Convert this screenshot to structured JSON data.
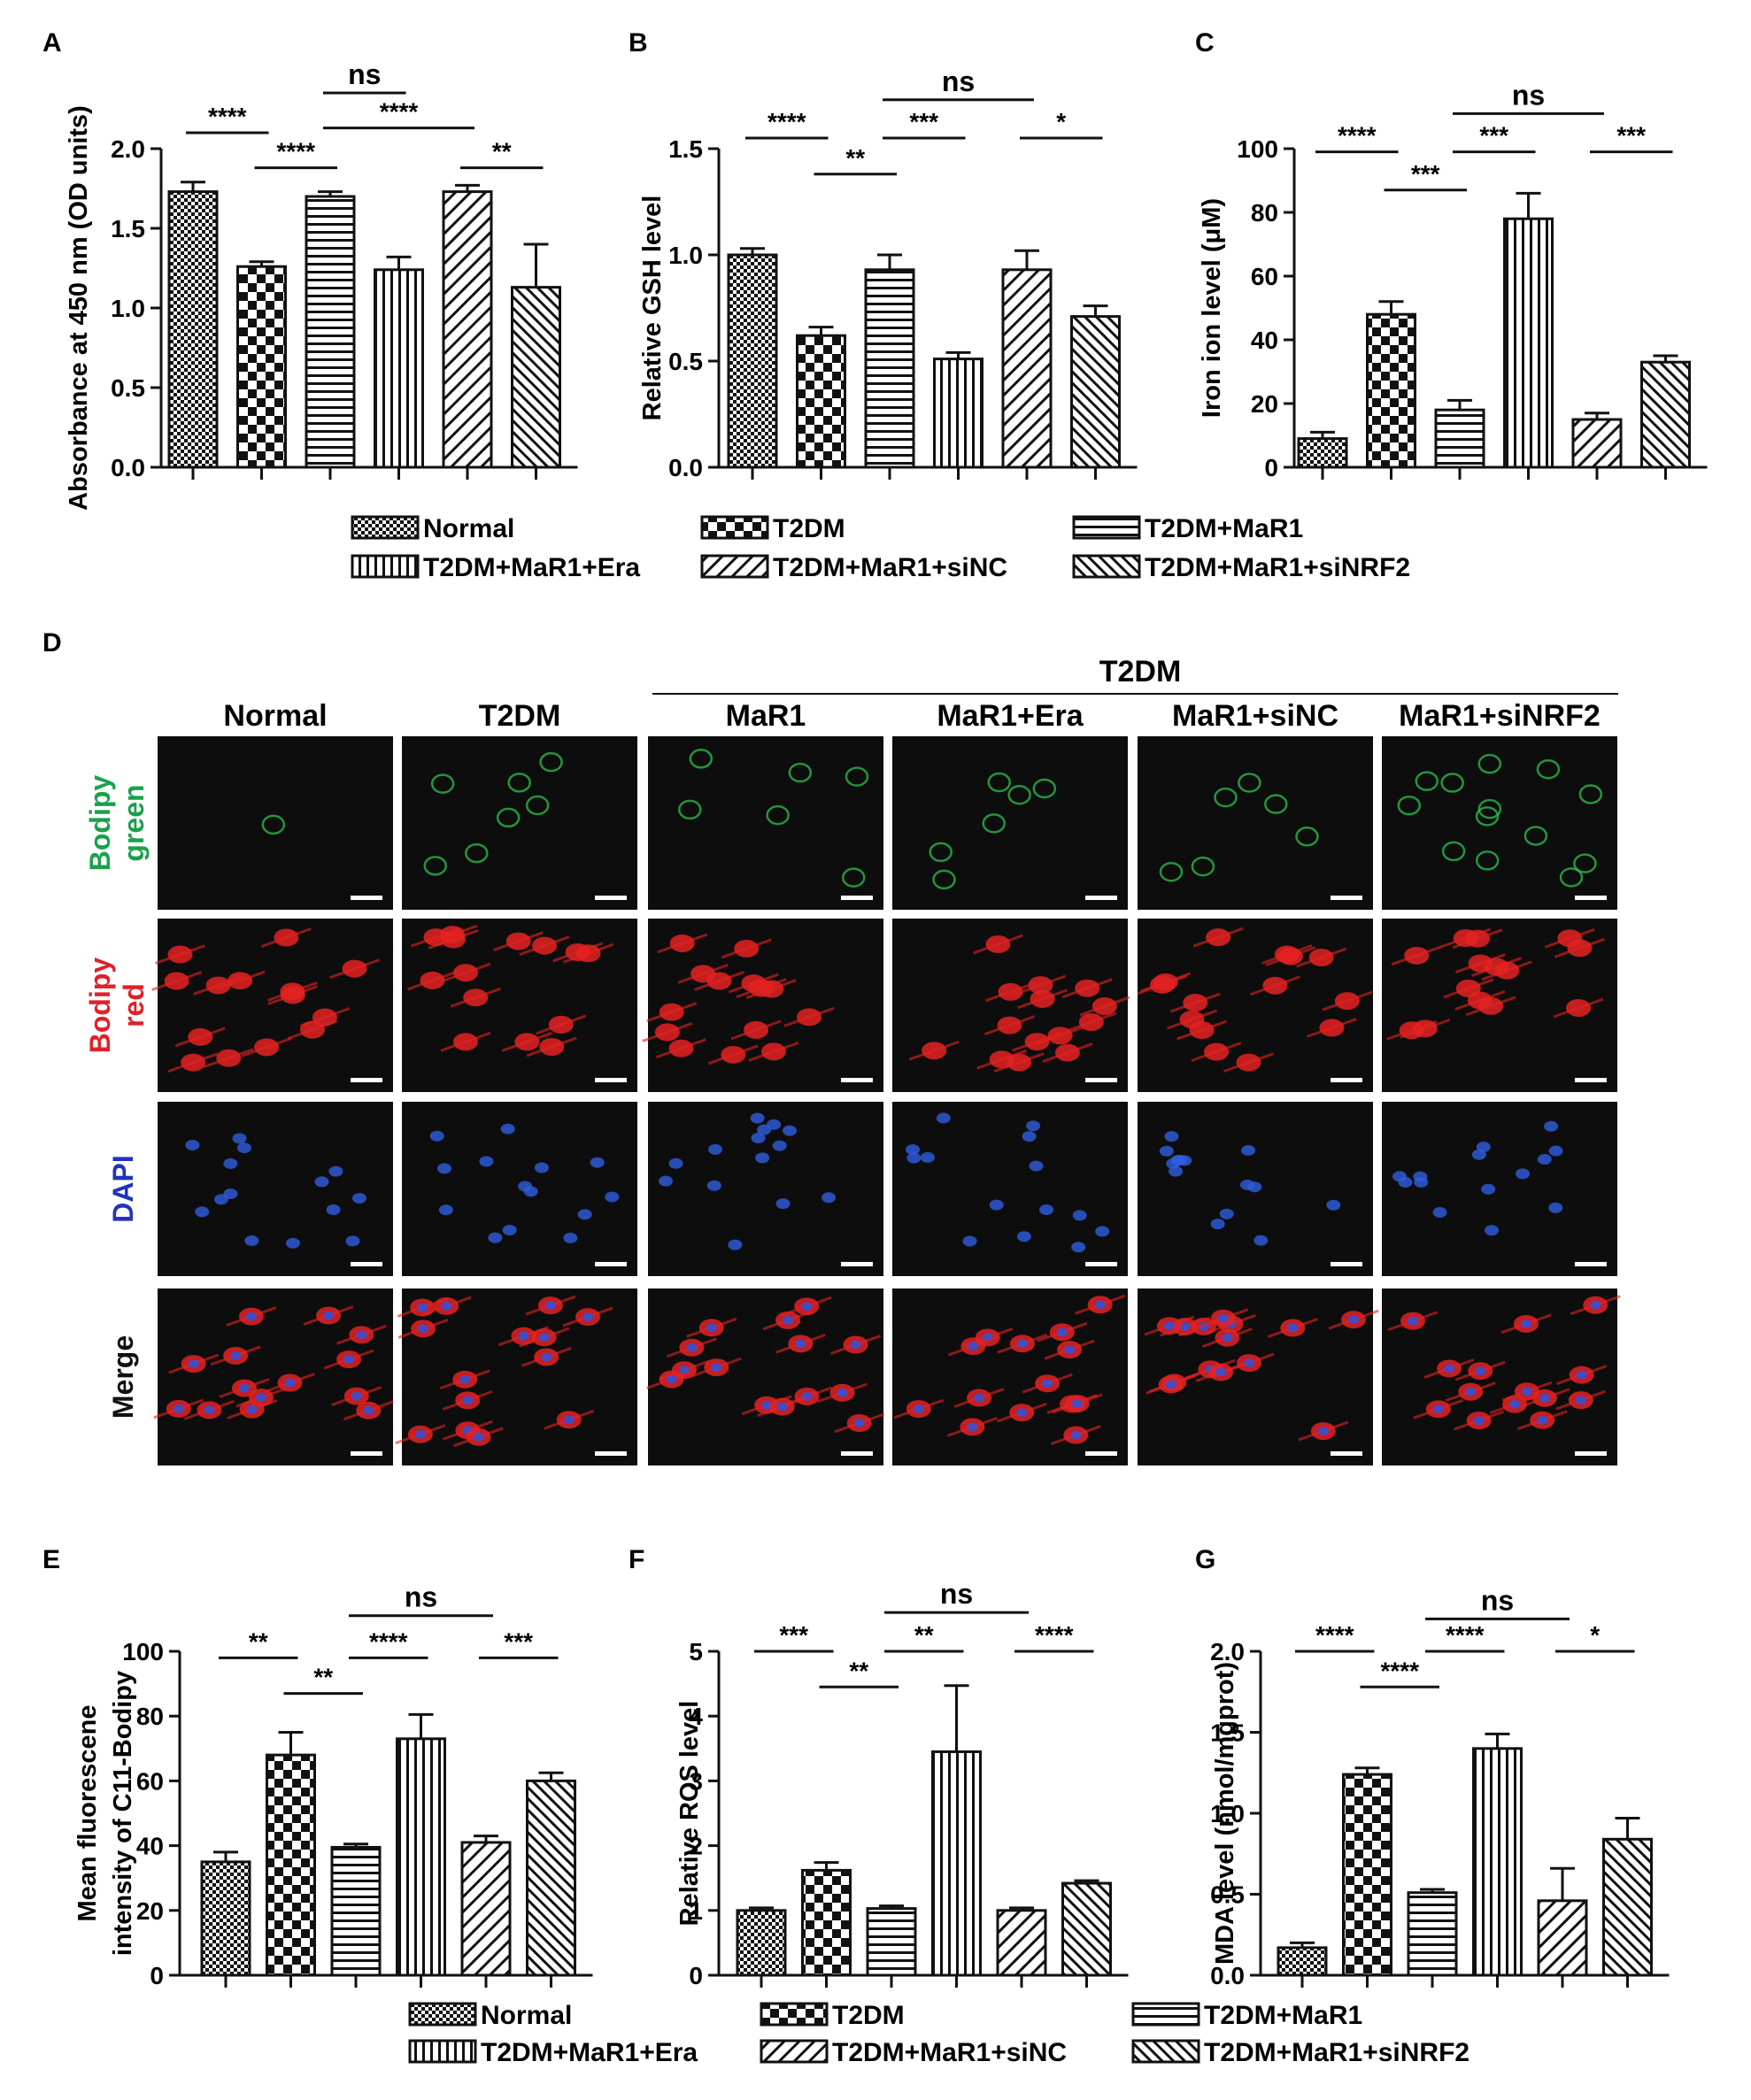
{
  "legend": {
    "groups": [
      "Normal",
      "T2DM",
      "T2DM+MaR1",
      "T2DM+MaR1+Era",
      "T2DM+MaR1+siNC",
      "T2DM+MaR1+siNRF2"
    ]
  },
  "microscopy": {
    "panel_letter": "D",
    "group_header": "T2DM",
    "columns": [
      "Normal",
      "T2DM",
      "MaR1",
      "MaR1+Era",
      "MaR1+siNC",
      "MaR1+siNRF2"
    ],
    "rows": [
      {
        "label": [
          "Bodipy",
          "green"
        ],
        "color": "#1aa14a",
        "cell_color": "#2ec24f"
      },
      {
        "label": [
          "Bodipy",
          "red"
        ],
        "color": "#e0202a",
        "cell_color": "#e52222"
      },
      {
        "label": [
          "DAPI"
        ],
        "color": "#2233bb",
        "cell_color": "#2f5ee0"
      },
      {
        "label": [
          "Merge"
        ],
        "color": "#111111",
        "cell_color": "#e52222"
      }
    ]
  },
  "chart_data": [
    {
      "panel": "A",
      "type": "bar",
      "ylabel": "Absorbance at 450 nm (OD units)",
      "ylim": [
        0,
        2.0
      ],
      "yticks": [
        "0.0",
        "0.5",
        "1.0",
        "1.5",
        "2.0"
      ],
      "categories": [
        "Normal",
        "T2DM",
        "T2DM+MaR1",
        "T2DM+MaR1+Era",
        "T2DM+MaR1+siNC",
        "T2DM+MaR1+siNRF2"
      ],
      "values": [
        1.73,
        1.26,
        1.7,
        1.24,
        1.73,
        1.13
      ],
      "errors": [
        0.06,
        0.03,
        0.03,
        0.08,
        0.04,
        0.27
      ],
      "significance": [
        {
          "from": 0,
          "to": 1,
          "label": "****",
          "level": 2.1
        },
        {
          "from": 1,
          "to": 2,
          "label": "****",
          "level": 1.88
        },
        {
          "from": 2,
          "to": 3,
          "label": "ns",
          "level": 2.35
        },
        {
          "from": 2,
          "to": 4,
          "label": "****",
          "level": 2.13
        },
        {
          "from": 4,
          "to": 5,
          "label": "**",
          "level": 1.88
        }
      ]
    },
    {
      "panel": "B",
      "type": "bar",
      "ylabel": "Relative GSH level",
      "ylim": [
        0,
        1.5
      ],
      "yticks": [
        "0.0",
        "0.5",
        "1.0",
        "1.5"
      ],
      "categories": [
        "Normal",
        "T2DM",
        "T2DM+MaR1",
        "T2DM+MaR1+Era",
        "T2DM+MaR1+siNC",
        "T2DM+MaR1+siNRF2"
      ],
      "values": [
        1.0,
        0.62,
        0.93,
        0.51,
        0.93,
        0.71
      ],
      "errors": [
        0.03,
        0.04,
        0.07,
        0.03,
        0.09,
        0.05
      ],
      "significance": [
        {
          "from": 0,
          "to": 1,
          "label": "****",
          "level": 1.55
        },
        {
          "from": 1,
          "to": 2,
          "label": "**",
          "level": 1.38
        },
        {
          "from": 2,
          "to": 4,
          "label": "ns",
          "level": 1.73
        },
        {
          "from": 2,
          "to": 3,
          "label": "***",
          "level": 1.55
        },
        {
          "from": 4,
          "to": 5,
          "label": "*",
          "level": 1.55
        }
      ]
    },
    {
      "panel": "C",
      "type": "bar",
      "ylabel": "Iron ion level (μM)",
      "ylim": [
        0,
        100
      ],
      "yticks": [
        "0",
        "20",
        "40",
        "60",
        "80",
        "100"
      ],
      "categories": [
        "Normal",
        "T2DM",
        "T2DM+MaR1",
        "T2DM+MaR1+Era",
        "T2DM+MaR1+siNC",
        "T2DM+MaR1+siNRF2"
      ],
      "values": [
        9,
        48,
        18,
        78,
        15,
        33
      ],
      "errors": [
        2,
        4,
        3,
        8,
        2,
        2
      ],
      "significance": [
        {
          "from": 0,
          "to": 1,
          "label": "****",
          "level": 99
        },
        {
          "from": 1,
          "to": 2,
          "label": "***",
          "level": 87
        },
        {
          "from": 2,
          "to": 4,
          "label": "ns",
          "level": 111
        },
        {
          "from": 2,
          "to": 3,
          "label": "***",
          "level": 99
        },
        {
          "from": 4,
          "to": 5,
          "label": "***",
          "level": 99
        }
      ]
    },
    {
      "panel": "E",
      "type": "bar",
      "ylabel": [
        "Mean fluorescene",
        "intensity of C11-Bodipy"
      ],
      "ylim": [
        0,
        100
      ],
      "yticks": [
        "0",
        "20",
        "40",
        "60",
        "80",
        "100"
      ],
      "categories": [
        "Normal",
        "T2DM",
        "T2DM+MaR1",
        "T2DM+MaR1+Era",
        "T2DM+MaR1+siNC",
        "T2DM+MaR1+siNRF2"
      ],
      "values": [
        35,
        68,
        39.5,
        73,
        41,
        60
      ],
      "errors": [
        3,
        7,
        1,
        7.5,
        2,
        2.5
      ],
      "significance": [
        {
          "from": 0,
          "to": 1,
          "label": "**",
          "level": 98
        },
        {
          "from": 1,
          "to": 2,
          "label": "**",
          "level": 87
        },
        {
          "from": 2,
          "to": 4,
          "label": "ns",
          "level": 111
        },
        {
          "from": 2,
          "to": 3,
          "label": "****",
          "level": 98
        },
        {
          "from": 4,
          "to": 5,
          "label": "***",
          "level": 98
        }
      ]
    },
    {
      "panel": "F",
      "type": "bar",
      "ylabel": "Relative ROS level",
      "ylim": [
        0,
        5
      ],
      "yticks": [
        "0",
        "1",
        "2",
        "3",
        "4",
        "5"
      ],
      "categories": [
        "Normal",
        "T2DM",
        "T2DM+MaR1",
        "T2DM+MaR1+Era",
        "T2DM+MaR1+siNC",
        "T2DM+MaR1+siNRF2"
      ],
      "values": [
        1.0,
        1.62,
        1.03,
        3.45,
        1.0,
        1.42
      ],
      "errors": [
        0.04,
        0.12,
        0.04,
        1.02,
        0.04,
        0.04
      ],
      "significance": [
        {
          "from": 0,
          "to": 1,
          "label": "***",
          "level": 5.0
        },
        {
          "from": 1,
          "to": 2,
          "label": "**",
          "level": 4.45
        },
        {
          "from": 2,
          "to": 4,
          "label": "ns",
          "level": 5.6
        },
        {
          "from": 2,
          "to": 3,
          "label": "**",
          "level": 5.0
        },
        {
          "from": 4,
          "to": 5,
          "label": "****",
          "level": 5.0
        }
      ]
    },
    {
      "panel": "G",
      "type": "bar",
      "ylabel": "MDA level (nmol/mgprot)",
      "ylim": [
        0,
        2.0
      ],
      "yticks": [
        "0.0",
        "0.5",
        "1.0",
        "1.5",
        "2.0"
      ],
      "categories": [
        "Normal",
        "T2DM",
        "T2DM+MaR1",
        "T2DM+MaR1+Era",
        "T2DM+MaR1+siNC",
        "T2DM+MaR1+siNRF2"
      ],
      "values": [
        0.17,
        1.24,
        0.51,
        1.4,
        0.46,
        0.84
      ],
      "errors": [
        0.03,
        0.04,
        0.02,
        0.09,
        0.2,
        0.13
      ],
      "significance": [
        {
          "from": 0,
          "to": 1,
          "label": "****",
          "level": 2.0
        },
        {
          "from": 1,
          "to": 2,
          "label": "****",
          "level": 1.78
        },
        {
          "from": 2,
          "to": 4,
          "label": "ns",
          "level": 2.2
        },
        {
          "from": 2,
          "to": 3,
          "label": "****",
          "level": 2.0
        },
        {
          "from": 4,
          "to": 5,
          "label": "*",
          "level": 2.0
        }
      ]
    }
  ]
}
